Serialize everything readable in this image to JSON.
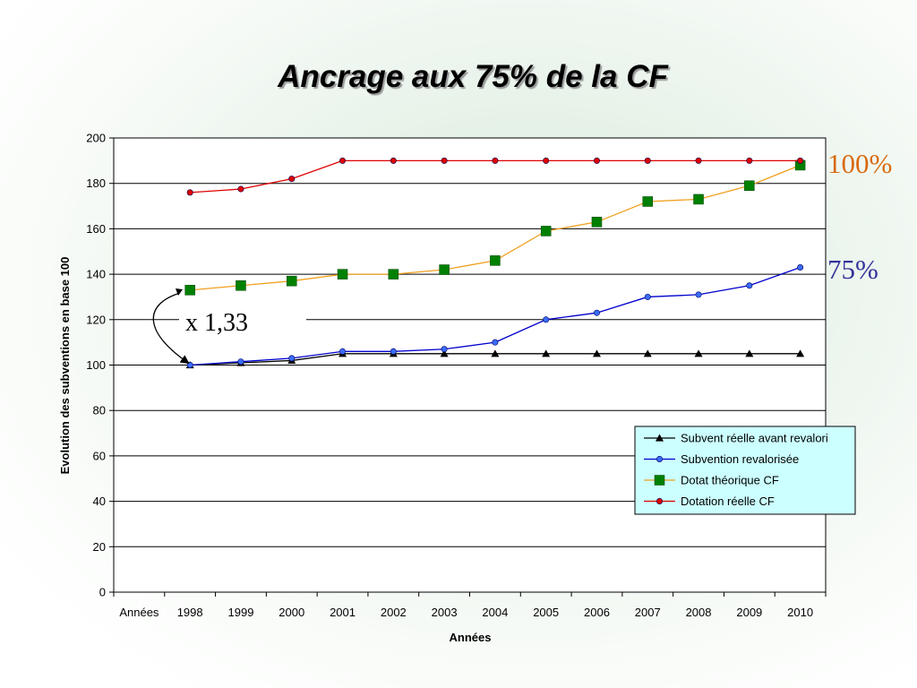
{
  "slide": {
    "title": "Ancrage aux 75% de la CF"
  },
  "chart_data": {
    "type": "line",
    "xlabel": "Années",
    "ylabel": "Evolution des subventions en base 100",
    "ylim": [
      0,
      200
    ],
    "y_ticks": [
      0,
      20,
      40,
      60,
      80,
      100,
      120,
      140,
      160,
      180,
      200
    ],
    "categories": [
      "Années",
      "1998",
      "1999",
      "2000",
      "2001",
      "2002",
      "2003",
      "2004",
      "2005",
      "2006",
      "2007",
      "2008",
      "2009",
      "2010"
    ],
    "grid": "horizontal",
    "legend_position": "right",
    "series": [
      {
        "name": "Subvent réelle avant revalori",
        "color": "#000000",
        "marker": "triangle",
        "values": [
          null,
          100,
          101,
          102,
          105,
          105,
          105,
          105,
          105,
          105,
          105,
          105,
          105,
          105
        ]
      },
      {
        "name": "Subvention revalorisée",
        "color": "#0000cc",
        "marker": "circle",
        "values": [
          null,
          100,
          101.5,
          103,
          106,
          106,
          107,
          110,
          120,
          123,
          130,
          131,
          135,
          143
        ]
      },
      {
        "name": "Dotat théorique CF",
        "color": "#f0a020",
        "marker": "square",
        "marker_color": "#008000",
        "values": [
          null,
          133,
          135,
          137,
          140,
          140,
          142,
          146,
          159,
          163,
          172,
          173,
          179,
          188
        ]
      },
      {
        "name": "Dotation réelle CF",
        "color": "#e00000",
        "marker": "circle",
        "values": [
          null,
          176,
          177.5,
          182,
          190,
          190,
          190,
          190,
          190,
          190,
          190,
          190,
          190,
          190
        ]
      }
    ],
    "annotations": {
      "ratio_label": "x 1,33",
      "label_100": "100%",
      "label_100_color": "#d86a10",
      "label_75": "75%",
      "label_75_color": "#33339a"
    }
  }
}
